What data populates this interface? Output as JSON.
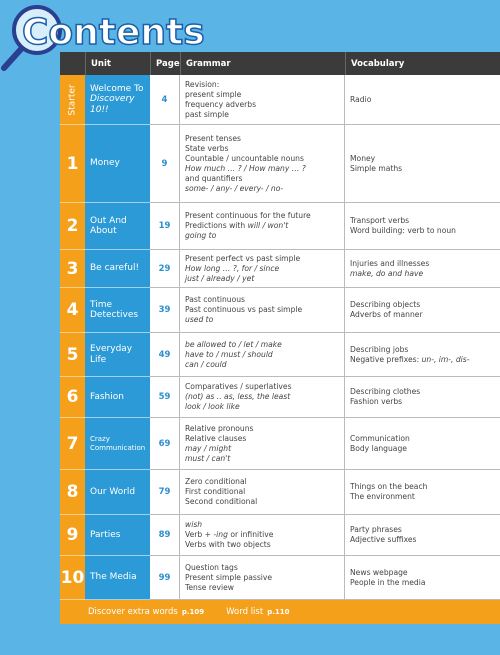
{
  "header": {
    "title": "Contents",
    "columns": [
      "Unit",
      "Page",
      "Grammar",
      "Vocabulary"
    ]
  },
  "rows": [
    {
      "num": "Starter",
      "unit": [
        "Welcome To",
        {
          "italic": "Discovery"
        },
        {
          "italic": "10!!"
        }
      ],
      "page": "4",
      "grammar": [
        "Revision:",
        "present simple",
        "frequency adverbs",
        "past simple"
      ],
      "vocabulary": [
        "Radio"
      ]
    },
    {
      "num": "1",
      "unit": [
        "Money"
      ],
      "page": "9",
      "grammar": [
        "Present tenses",
        "State verbs",
        "Countable / uncountable nouns",
        {
          "italic": "How much … ? / How many … ?"
        },
        "and quantifiers",
        {
          "italic": "some- / any- / every- / no-"
        }
      ],
      "vocabulary": [
        "Money",
        "Simple maths"
      ]
    },
    {
      "num": "2",
      "unit": [
        "Out And",
        "About"
      ],
      "page": "19",
      "grammar": [
        "Present continuous for the future",
        [
          "Predictions with ",
          {
            "italic": "will / won't"
          }
        ],
        {
          "italic": "going to"
        }
      ],
      "vocabulary": [
        "Transport verbs",
        "Word building: verb to noun"
      ]
    },
    {
      "num": "3",
      "unit": [
        "Be careful!"
      ],
      "page": "29",
      "grammar": [
        "Present perfect vs past simple",
        {
          "italic": "How long … ?, for / since"
        },
        {
          "italic": "just / already / yet"
        }
      ],
      "vocabulary": [
        "Injuries and illnesses",
        {
          "italic": "make, do and have"
        }
      ]
    },
    {
      "num": "4",
      "unit": [
        "Time",
        "Detectives"
      ],
      "page": "39",
      "grammar": [
        "Past continuous",
        "Past continuous vs past simple",
        {
          "italic": "used to"
        }
      ],
      "vocabulary": [
        "Describing objects",
        "Adverbs of manner"
      ]
    },
    {
      "num": "5",
      "unit": [
        "Everyday",
        "Life"
      ],
      "page": "49",
      "grammar": [
        {
          "italic": "be allowed to / let / make"
        },
        {
          "italic": "have to / must / should"
        },
        {
          "italic": "can / could"
        }
      ],
      "vocabulary": [
        "Describing jobs",
        [
          "Negative prefixes: ",
          {
            "italic": "un-, im-, dis-"
          }
        ]
      ]
    },
    {
      "num": "6",
      "unit": [
        "Fashion"
      ],
      "page": "59",
      "grammar": [
        "Comparatives / superlatives",
        {
          "italic": "(not) as .. as, less, the least"
        },
        {
          "italic": "look / look like"
        }
      ],
      "vocabulary": [
        "Describing clothes",
        "Fashion verbs"
      ]
    },
    {
      "num": "7",
      "unit": [
        "Crazy",
        "Communication"
      ],
      "page": "69",
      "grammar": [
        "Relative pronouns",
        "Relative clauses",
        {
          "italic": "may / might"
        },
        {
          "italic": "must / can't"
        }
      ],
      "vocabulary": [
        "Communication",
        "Body language"
      ]
    },
    {
      "num": "8",
      "unit": [
        "Our World"
      ],
      "page": "79",
      "grammar": [
        "Zero conditional",
        "First conditional",
        "Second conditional"
      ],
      "vocabulary": [
        "Things on the beach",
        "The environment"
      ]
    },
    {
      "num": "9",
      "unit": [
        "Parties"
      ],
      "page": "89",
      "grammar": [
        {
          "italic": "wish"
        },
        [
          "Verb + ",
          {
            "italic": "-ing"
          },
          " or infinitive"
        ],
        "Verbs with two objects"
      ],
      "vocabulary": [
        "Party phrases",
        "Adjective suffixes"
      ]
    },
    {
      "num": "10",
      "unit": [
        "The Media"
      ],
      "page": "99",
      "grammar": [
        "Question tags",
        "Present simple passive",
        "Tense review"
      ],
      "vocabulary": [
        "News webpage",
        "People in the media"
      ]
    }
  ],
  "footer": [
    {
      "label": "Discover extra words",
      "page": "p.109"
    },
    {
      "label": "Word list",
      "page": "p.110"
    }
  ]
}
